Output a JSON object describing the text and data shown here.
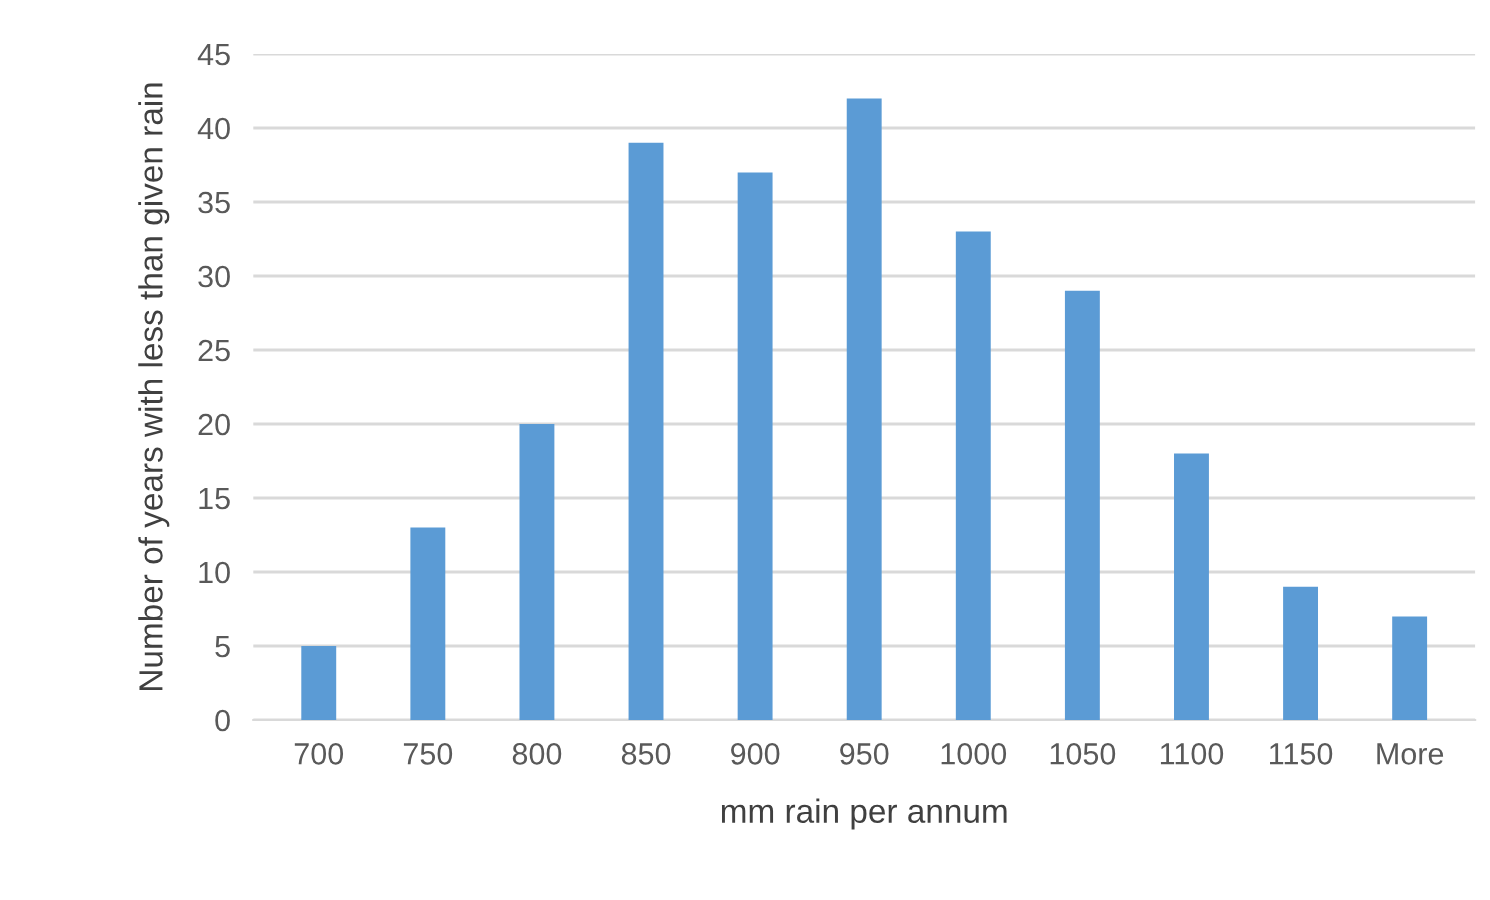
{
  "chart_data": {
    "type": "bar",
    "xlabel": "mm rain per annum",
    "ylabel": "Number of years with less than given rain",
    "categories": [
      "700",
      "750",
      "800",
      "850",
      "900",
      "950",
      "1000",
      "1050",
      "1100",
      "1150",
      "More"
    ],
    "values": [
      5,
      13,
      20,
      39,
      37,
      42,
      33,
      29,
      18,
      9,
      7
    ],
    "color": "#5b9bd5",
    "ylim": [
      0,
      45
    ],
    "yticks": [
      0,
      5,
      10,
      15,
      20,
      25,
      30,
      35,
      40,
      45
    ],
    "grid": "y"
  }
}
